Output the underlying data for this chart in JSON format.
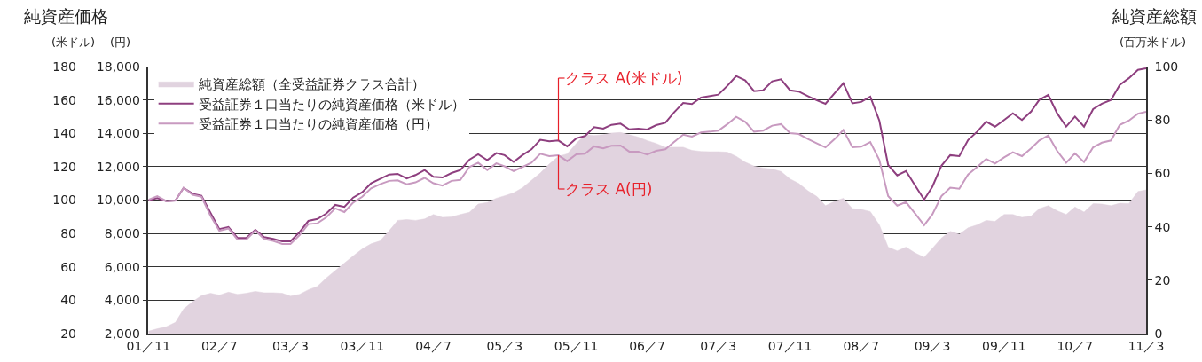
{
  "chart_data": {
    "type": "line",
    "x": [
      "2001-11",
      "2001-12",
      "2002-01",
      "2002-02",
      "2002-03",
      "2002-04",
      "2002-05",
      "2002-06",
      "2002-07",
      "2002-08",
      "2002-09",
      "2002-10",
      "2002-11",
      "2002-12",
      "2003-01",
      "2003-02",
      "2003-03",
      "2003-04",
      "2003-05",
      "2003-06",
      "2003-07",
      "2003-08",
      "2003-09",
      "2003-10",
      "2003-11",
      "2003-12",
      "2004-01",
      "2004-02",
      "2004-03",
      "2004-04",
      "2004-05",
      "2004-06",
      "2004-07",
      "2004-08",
      "2004-09",
      "2004-10",
      "2004-11",
      "2004-12",
      "2005-01",
      "2005-02",
      "2005-03",
      "2005-04",
      "2005-05",
      "2005-06",
      "2005-07",
      "2005-08",
      "2005-09",
      "2005-10",
      "2005-11",
      "2005-12",
      "2006-01",
      "2006-02",
      "2006-03",
      "2006-04",
      "2006-05",
      "2006-06",
      "2006-07",
      "2006-08",
      "2006-09",
      "2006-10",
      "2006-11",
      "2006-12",
      "2007-01",
      "2007-02",
      "2007-03",
      "2007-04",
      "2007-05",
      "2007-06",
      "2007-07",
      "2007-08",
      "2007-09",
      "2007-10",
      "2007-11",
      "2007-12",
      "2008-01",
      "2008-02",
      "2008-03",
      "2008-04",
      "2008-05",
      "2008-06",
      "2008-07",
      "2008-08",
      "2008-09",
      "2008-10",
      "2008-11",
      "2008-12",
      "2009-01",
      "2009-02",
      "2009-03",
      "2009-04",
      "2009-05",
      "2009-06",
      "2009-07",
      "2009-08",
      "2009-09",
      "2009-10",
      "2009-11",
      "2009-12",
      "2010-01",
      "2010-02",
      "2010-03",
      "2010-04",
      "2010-05",
      "2010-06",
      "2010-07",
      "2010-08",
      "2010-09",
      "2010-10",
      "2010-11",
      "2010-12",
      "2011-01",
      "2011-02",
      "2011-03"
    ],
    "xlim": [
      "2001-11",
      "2011-03"
    ],
    "xticks": [
      {
        "value": "2001-11",
        "label": "01／11"
      },
      {
        "value": "2002-07",
        "label": "02／7"
      },
      {
        "value": "2003-03",
        "label": "03／3"
      },
      {
        "value": "2003-11",
        "label": "03／11"
      },
      {
        "value": "2004-07",
        "label": "04／7"
      },
      {
        "value": "2005-03",
        "label": "05／3"
      },
      {
        "value": "2005-11",
        "label": "05／11"
      },
      {
        "value": "2006-07",
        "label": "06／7"
      },
      {
        "value": "2007-03",
        "label": "07／3"
      },
      {
        "value": "2007-11",
        "label": "07／11"
      },
      {
        "value": "2008-07",
        "label": "08／7"
      },
      {
        "value": "2009-03",
        "label": "09／3"
      },
      {
        "value": "2009-11",
        "label": "09／11"
      },
      {
        "value": "2010-07",
        "label": "10／7"
      },
      {
        "value": "2011-03",
        "label": "11／3"
      }
    ],
    "ylim": [
      20,
      180
    ],
    "yticks": [
      20,
      40,
      60,
      80,
      100,
      120,
      140,
      160,
      180
    ],
    "y2lim": [
      2000,
      18000
    ],
    "y2ticks": [
      {
        "value": 2000,
        "label": "2,000"
      },
      {
        "value": 4000,
        "label": "4,000"
      },
      {
        "value": 6000,
        "label": "6,000"
      },
      {
        "value": 8000,
        "label": "8,000"
      },
      {
        "value": 10000,
        "label": "10,000"
      },
      {
        "value": 12000,
        "label": "12,000"
      },
      {
        "value": 14000,
        "label": "14,000"
      },
      {
        "value": 16000,
        "label": "16,000"
      },
      {
        "value": 18000,
        "label": "18,000"
      }
    ],
    "y3lim": [
      0,
      100
    ],
    "y3ticks": [
      0,
      20,
      40,
      60,
      80,
      100
    ],
    "ylabel": "(米ドル)",
    "y2label": "(円)",
    "y3label": "(百万米ドル)",
    "annotations": [
      "純資産価格",
      "純資産総額",
      {
        "text": "クラス A(米ドル)",
        "x": "2005-09",
        "y": 135.7
      },
      {
        "text": "クラス A(円)",
        "x": "2005-09",
        "y": 126.8
      }
    ],
    "grid": "y",
    "legend": "top left",
    "series": [
      {
        "type": "area",
        "axis": "y3",
        "name": "純資産総額（全受益証券クラス合計）",
        "color": "#e1d3df",
        "values": [
          0.9,
          1.8,
          2.6,
          4.2,
          9.2,
          12,
          14.2,
          15.1,
          14.4,
          15.5,
          14.7,
          15.1,
          15.8,
          15.3,
          15.3,
          15.1,
          14,
          14.7,
          16.4,
          17.7,
          20.8,
          23.6,
          26.4,
          29.1,
          31.7,
          33.6,
          34.7,
          38.5,
          42.4,
          42.7,
          42.4,
          42.9,
          44.6,
          43.5,
          43.7,
          44.6,
          45.4,
          48.5,
          49.1,
          50.7,
          51.6,
          52.7,
          54.6,
          57.4,
          60.1,
          63.5,
          66.4,
          67.3,
          71.2,
          74.5,
          74.2,
          74.5,
          75.1,
          75.3,
          74.5,
          73.6,
          72.3,
          71.2,
          69.8,
          69.8,
          69.8,
          68.6,
          68.2,
          68.1,
          68.1,
          67.9,
          66.4,
          64.2,
          62.7,
          62,
          61.6,
          60.7,
          57.9,
          56.2,
          53.5,
          51.3,
          47.9,
          49.5,
          50.7,
          46.8,
          46.5,
          45.7,
          40.7,
          32.4,
          31,
          32.4,
          30.2,
          28.6,
          31.9,
          35.8,
          38.3,
          37.2,
          39.6,
          40.7,
          42.4,
          42,
          44.6,
          44.6,
          43.5,
          44,
          46.8,
          47.9,
          46,
          44.6,
          47.4,
          45.5,
          48.7,
          48.5,
          47.9,
          48.8,
          48.7,
          53.2,
          53.8
        ]
      },
      {
        "name": "受益証券１口当たりの純資産価格（米ドル）",
        "color": "#8e3f7f",
        "values": [
          99.9,
          101.2,
          99.4,
          99.7,
          107.3,
          103.8,
          102.6,
          92.3,
          82.6,
          83.8,
          77.3,
          77.3,
          82.2,
          77.8,
          76.7,
          75.3,
          75.3,
          80.8,
          87.5,
          88.7,
          91.9,
          97.1,
          95.9,
          101.5,
          104.7,
          110,
          112.7,
          115.3,
          115.7,
          113,
          115,
          118,
          113.9,
          113.5,
          116.2,
          118,
          124.2,
          127.4,
          123.9,
          128.1,
          126.9,
          122.8,
          126.9,
          130.4,
          136.1,
          135.2,
          135.7,
          132.2,
          137,
          138.4,
          143.7,
          142.8,
          145.1,
          145.8,
          142.4,
          142.8,
          142.3,
          144.9,
          146.3,
          152.6,
          158.2,
          157.5,
          161.4,
          162.3,
          163.2,
          168.5,
          174.3,
          171.7,
          165.3,
          165.8,
          171.2,
          172.4,
          165.8,
          165,
          162.3,
          159.7,
          157.7,
          164,
          170,
          158,
          158.8,
          162,
          147.6,
          121,
          114.8,
          117.4,
          108.8,
          100.3,
          108,
          120.6,
          126.9,
          126.3,
          136,
          141,
          147,
          144,
          148,
          152,
          148,
          153,
          160,
          163,
          152,
          144,
          150,
          144,
          154.5,
          157.7,
          160,
          169,
          173,
          178,
          179
        ]
      },
      {
        "axis": "y2",
        "name": "受益証券１口当たりの純資産価格（円）",
        "color": "#c89ac0",
        "values": [
          10020,
          10240,
          9940,
          9970,
          10730,
          10320,
          10200,
          9050,
          8160,
          8300,
          7640,
          7640,
          8160,
          7670,
          7550,
          7370,
          7370,
          7900,
          8560,
          8610,
          8960,
          9500,
          9280,
          9850,
          10200,
          10700,
          10950,
          11150,
          11180,
          10950,
          11060,
          11330,
          11010,
          10870,
          11150,
          11210,
          11980,
          12240,
          11800,
          12200,
          12020,
          11740,
          11980,
          12240,
          12770,
          12630,
          12680,
          12330,
          12740,
          12770,
          13220,
          13100,
          13250,
          13270,
          12900,
          12900,
          12730,
          12950,
          13040,
          13480,
          13920,
          13800,
          14050,
          14100,
          14160,
          14550,
          14990,
          14690,
          14100,
          14160,
          14460,
          14550,
          14010,
          13960,
          13660,
          13400,
          13160,
          13650,
          14200,
          13160,
          13200,
          13480,
          12400,
          10240,
          9670,
          9880,
          9200,
          8490,
          9140,
          10240,
          10740,
          10680,
          11530,
          11980,
          12460,
          12190,
          12560,
          12860,
          12630,
          13100,
          13570,
          13870,
          12950,
          12240,
          12800,
          12280,
          13160,
          13440,
          13570,
          14500,
          14760,
          15170,
          15290
        ]
      }
    ]
  }
}
